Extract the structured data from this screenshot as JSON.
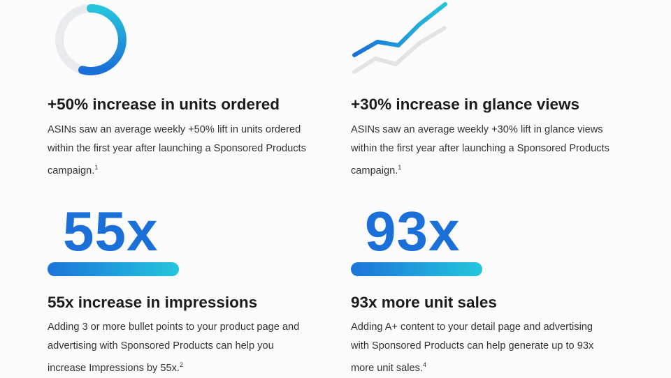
{
  "cards": [
    {
      "heading": "+50% increase in units ordered",
      "lines": [
        "ASINs saw an average weekly +50% lift in units ordered",
        "within the first year after launching a Sponsored Products",
        "campaign."
      ],
      "footnote": "1"
    },
    {
      "heading": "+30% increase in glance views",
      "lines": [
        "ASINs saw an average weekly +30% lift in glance views",
        "within the first year after launching a Sponsored Products",
        "campaign."
      ],
      "footnote": "1"
    },
    {
      "stat": "55x",
      "heading": "55x increase in impressions",
      "lines": [
        "Adding 3 or more bullet points to your product page and",
        "advertising with Sponsored Products can help you",
        "increase Impressions by 55x."
      ],
      "footnote": "2"
    },
    {
      "stat": "93x",
      "heading": "93x more unit sales",
      "lines": [
        "Adding A+ content to your detail page and advertising",
        "with Sponsored Products can help generate up to 93x",
        "more unit sales."
      ],
      "footnote": "4"
    }
  ]
}
